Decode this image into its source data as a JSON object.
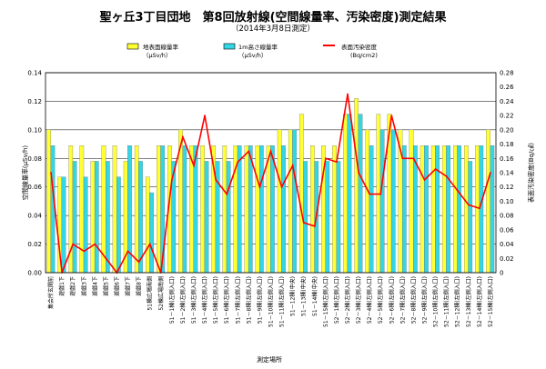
{
  "title": "聖ヶ丘3丁目団地　第8回放射線(空間線量率、汚染密度)測定結果",
  "subtitle": "（2014年3月8日測定）",
  "colors": {
    "bar1": "#ffff33",
    "bar2": "#33d6e6",
    "line": "#ff0000",
    "grid": "#000000"
  },
  "chart_data": {
    "type": "bar",
    "title": "聖ヶ丘3丁目団地　第8回放射線(空間線量率、汚染密度)測定結果",
    "subtitle": "（2014年3月8日測定）",
    "xlabel": "測定場所",
    "ylabel_left": "空間線量率(μSv/h)",
    "ylabel_right": "表面汚染密度(Bq/㎠)",
    "ylim_left": [
      0,
      0.14
    ],
    "ylim_right": [
      0,
      0.28
    ],
    "yticks_left": [
      "0.00",
      "0.02",
      "0.04",
      "0.06",
      "0.08",
      "0.10",
      "0.12",
      "0.14"
    ],
    "yticks_right": [
      "0",
      "0.02",
      "0.04",
      "0.06",
      "0.08",
      "0.10",
      "0.12",
      "0.14",
      "0.16",
      "0.18",
      "0.20",
      "0.22",
      "0.24",
      "0.26",
      "0.28"
    ],
    "legend": [
      {
        "name": "地表面線量率",
        "unit": "（μSv/h）"
      },
      {
        "name": "1m高さ線量率",
        "unit": "（μSv/h）"
      },
      {
        "name": "表面汚染密度",
        "unit": "(Bq/cm2)"
      }
    ],
    "categories": [
      "集会所玄関前",
      "遊戯1下",
      "遊戯2下",
      "遊戯3下",
      "遊戯4下",
      "遊戯5下",
      "遊戯6下",
      "遊戯7下",
      "遊戯8下",
      "51棟広場南側",
      "52棟広場南側",
      "51－1棟(左側入口)",
      "51－2棟(左側入口)",
      "51－3棟(左側入口)",
      "51－4棟(左側入口)",
      "51－5棟(左側入口)",
      "51－6棟(左側入口)",
      "51－7棟(左側入口)",
      "51－8棟(左側入口)",
      "51－9棟(左側入口)",
      "51－10棟(左側入口)",
      "51－11棟(左側入口)",
      "51－12棟(中央)",
      "51－13棟(中央)",
      "51－14棟(中央)",
      "51－15棟(左側入口)",
      "52－1棟(左側入口)",
      "52－2棟(左側入口)",
      "52－3棟(左側入口)",
      "52－4棟(左側入口)",
      "52－5棟(左側入口)",
      "52－6棟(左側入口)",
      "52－7棟(左側入口)",
      "52－8棟(左側入口)",
      "52－9棟(左側入口)",
      "52－10棟(左側入口)",
      "52－11棟(左側入口)",
      "52－12棟(左側入口)",
      "52－13棟(左側入口)",
      "52－14棟(左側入口)",
      "52－15棟(左側入口)"
    ],
    "series": [
      {
        "name": "地表面線量率",
        "axis": "left",
        "values": [
          0.1,
          0.067,
          0.089,
          0.089,
          0.078,
          0.089,
          0.089,
          0.078,
          0.089,
          0.067,
          0.089,
          0.089,
          0.1,
          0.089,
          0.089,
          0.089,
          0.089,
          0.089,
          0.089,
          0.089,
          0.089,
          0.1,
          0.1,
          0.111,
          0.089,
          0.089,
          0.089,
          0.111,
          0.122,
          0.1,
          0.111,
          0.111,
          0.1,
          0.1,
          0.089,
          0.089,
          0.089,
          0.089,
          0.089,
          0.089,
          0.1
        ]
      },
      {
        "name": "1m高さ線量率",
        "axis": "left",
        "values": [
          0.089,
          0.067,
          0.078,
          0.067,
          0.078,
          0.078,
          0.067,
          0.089,
          0.078,
          0.056,
          0.089,
          0.078,
          0.089,
          0.089,
          0.078,
          0.078,
          0.078,
          0.089,
          0.089,
          0.089,
          0.089,
          0.089,
          0.1,
          0.078,
          0.078,
          0.078,
          0.078,
          0.111,
          0.111,
          0.089,
          0.1,
          0.1,
          0.089,
          0.089,
          0.089,
          0.089,
          0.089,
          0.089,
          0.078,
          0.089,
          0.089
        ]
      },
      {
        "name": "表面汚染密度",
        "axis": "right",
        "type": "line",
        "values": [
          0.14,
          0.0,
          0.04,
          0.03,
          0.04,
          0.02,
          0.0,
          0.03,
          0.015,
          0.04,
          0.0,
          0.13,
          0.19,
          0.15,
          0.22,
          0.13,
          0.11,
          0.155,
          0.17,
          0.12,
          0.17,
          0.12,
          0.15,
          0.07,
          0.065,
          0.16,
          0.155,
          0.25,
          0.14,
          0.11,
          0.11,
          0.22,
          0.16,
          0.16,
          0.13,
          0.145,
          0.135,
          0.115,
          0.095,
          0.09,
          0.14
        ]
      }
    ],
    "grid": true,
    "legend_position": "top"
  }
}
